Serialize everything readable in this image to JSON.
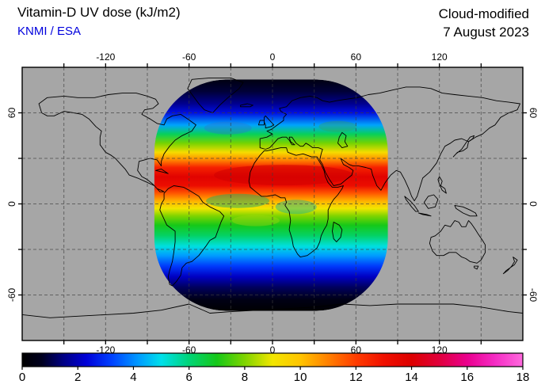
{
  "header": {
    "title": "Vitamin-D UV dose (kJ/m2)",
    "credit": "KNMI / ESA",
    "mode": "Cloud-modified",
    "date": "7 August 2023"
  },
  "colors": {
    "credit_blue": "#0000dd",
    "map_background": "#a6a6a6",
    "frame": "#000000"
  },
  "chart_data": {
    "type": "heatmap",
    "title": "Vitamin-D UV dose (kJ/m2)",
    "source": "KNMI / ESA",
    "mode": "Cloud-modified",
    "date": "7 August 2023",
    "projection": "equirectangular",
    "lon_range": [
      -180,
      180
    ],
    "lat_range": [
      -90,
      90
    ],
    "grid_step_deg": 30,
    "lon_tick_labels": [
      -120,
      -60,
      0,
      60,
      120
    ],
    "lat_tick_labels": [
      60,
      0,
      -60
    ],
    "colorbar": {
      "units": "kJ/m2",
      "min": 0,
      "max": 18,
      "tick_labels": [
        0,
        2,
        4,
        6,
        8,
        10,
        12,
        14,
        16,
        18
      ],
      "colormap_stops": [
        {
          "value": 0,
          "color": "#000000"
        },
        {
          "value": 0.7,
          "color": "#00001e"
        },
        {
          "value": 1.5,
          "color": "#000085"
        },
        {
          "value": 2.3,
          "color": "#0000d8"
        },
        {
          "value": 3.2,
          "color": "#0040ff"
        },
        {
          "value": 4.2,
          "color": "#009cff"
        },
        {
          "value": 5.0,
          "color": "#00e0ea"
        },
        {
          "value": 6.0,
          "color": "#00d478"
        },
        {
          "value": 7.0,
          "color": "#16c818"
        },
        {
          "value": 8.0,
          "color": "#7ed400"
        },
        {
          "value": 9.0,
          "color": "#f2e600"
        },
        {
          "value": 10.0,
          "color": "#ffc400"
        },
        {
          "value": 11.0,
          "color": "#ff8000"
        },
        {
          "value": 12.0,
          "color": "#ff3c00"
        },
        {
          "value": 13.0,
          "color": "#f01000"
        },
        {
          "value": 14.0,
          "color": "#dd0000"
        },
        {
          "value": 15.0,
          "color": "#e0003c"
        },
        {
          "value": 16.0,
          "color": "#ea008e"
        },
        {
          "value": 17.0,
          "color": "#f52cc4"
        },
        {
          "value": 18.0,
          "color": "#ff6ade"
        }
      ]
    },
    "data_coverage": {
      "description": "Satellite swath containing valid data; area outside swath is gray (no data)",
      "lon_extent": [
        -85,
        83
      ],
      "lat_extent": [
        -70.5,
        82
      ]
    },
    "meridional_profile": [
      {
        "lat": 82,
        "dose_kj_m2": 0.4
      },
      {
        "lat": 74,
        "dose_kj_m2": 0.9
      },
      {
        "lat": 66,
        "dose_kj_m2": 1.6
      },
      {
        "lat": 60,
        "dose_kj_m2": 2.5
      },
      {
        "lat": 52,
        "dose_kj_m2": 4.3
      },
      {
        "lat": 46,
        "dose_kj_m2": 6.3
      },
      {
        "lat": 40,
        "dose_kj_m2": 7.9
      },
      {
        "lat": 34,
        "dose_kj_m2": 9.3
      },
      {
        "lat": 29,
        "dose_kj_m2": 10.9
      },
      {
        "lat": 24,
        "dose_kj_m2": 12.6
      },
      {
        "lat": 18,
        "dose_kj_m2": 13.8
      },
      {
        "lat": 12,
        "dose_kj_m2": 13.2
      },
      {
        "lat": 7,
        "dose_kj_m2": 11.6
      },
      {
        "lat": 2,
        "dose_kj_m2": 10.3
      },
      {
        "lat": -3,
        "dose_kj_m2": 9.0
      },
      {
        "lat": -8,
        "dose_kj_m2": 8.0
      },
      {
        "lat": -14,
        "dose_kj_m2": 7.0
      },
      {
        "lat": -21,
        "dose_kj_m2": 6.2
      },
      {
        "lat": -28,
        "dose_kj_m2": 5.1
      },
      {
        "lat": -34,
        "dose_kj_m2": 4.2
      },
      {
        "lat": -41,
        "dose_kj_m2": 3.1
      },
      {
        "lat": -48,
        "dose_kj_m2": 2.1
      },
      {
        "lat": -55,
        "dose_kj_m2": 1.2
      },
      {
        "lat": -63,
        "dose_kj_m2": 0.5
      },
      {
        "lat": -70,
        "dose_kj_m2": 0.1
      }
    ]
  }
}
